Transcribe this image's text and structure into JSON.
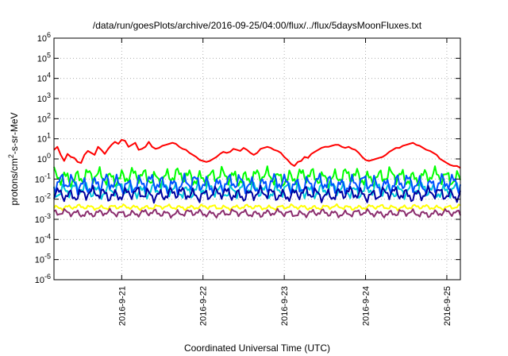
{
  "chart_data": {
    "type": "line",
    "title": "/data/run/goesPlots/archive/2016-09-25/04:00/flux/../flux/5daysMoonFluxes.txt",
    "xlabel": "Coordinated Universal Time (UTC)",
    "ylabel": {
      "pre": "protons/cm",
      "sup": "2",
      "post": "-s-sr-MeV"
    },
    "yscale": "log",
    "ylim_exp": [
      -6,
      6
    ],
    "y_ticks": [
      {
        "base": "10",
        "exp": "-6"
      },
      {
        "base": "10",
        "exp": "-5"
      },
      {
        "base": "10",
        "exp": "-4"
      },
      {
        "base": "10",
        "exp": "-3"
      },
      {
        "base": "10",
        "exp": "-2"
      },
      {
        "base": "10",
        "exp": "-1"
      },
      {
        "base": "10",
        "exp": "0"
      },
      {
        "base": "10",
        "exp": "1"
      },
      {
        "base": "10",
        "exp": "2"
      },
      {
        "base": "10",
        "exp": "3"
      },
      {
        "base": "10",
        "exp": "4"
      },
      {
        "base": "10",
        "exp": "5"
      },
      {
        "base": "10",
        "exp": "6"
      }
    ],
    "xlim": [
      "2016-09-20 04:00",
      "2016-09-25 04:00"
    ],
    "x_ticks": [
      {
        "label": "2016-9-21",
        "date": "2016-09-21"
      },
      {
        "label": "2016-9-22",
        "date": "2016-09-22"
      },
      {
        "label": "2016-9-23",
        "date": "2016-09-23"
      },
      {
        "label": "2016-9-24",
        "date": "2016-09-24"
      },
      {
        "label": "2016-9-25",
        "date": "2016-09-25"
      }
    ],
    "grid": true,
    "series": [
      {
        "color": "#ff0000",
        "x_hours": [
          0,
          1,
          2,
          3,
          4,
          5,
          6,
          7,
          8,
          9,
          10,
          11,
          12,
          13,
          14,
          15,
          16,
          17,
          18,
          19,
          20,
          21,
          22,
          23,
          24,
          25,
          26,
          27,
          28,
          29,
          30,
          31,
          32,
          33,
          34,
          35,
          36,
          37,
          38,
          39,
          40,
          41,
          42,
          43,
          44,
          45,
          46,
          47,
          48,
          49,
          50,
          51,
          52,
          53,
          54,
          55,
          56,
          57,
          58,
          59,
          60,
          61,
          62,
          63,
          64,
          65,
          66,
          67,
          68,
          69,
          70,
          71,
          72,
          73,
          74,
          75,
          76,
          77,
          78,
          79,
          80,
          81,
          82,
          83,
          84,
          85,
          86,
          87,
          88,
          89,
          90,
          91,
          92,
          93,
          94,
          95,
          96,
          97,
          98,
          99,
          100,
          101,
          102,
          103,
          104,
          105,
          106,
          107,
          108,
          109,
          110,
          111,
          112,
          113,
          114,
          115,
          116,
          117,
          118,
          119,
          120
        ],
        "log10": [
          0.45,
          0.6,
          0.2,
          -0.1,
          0.25,
          0.1,
          0.05,
          -0.15,
          -0.2,
          0.2,
          0.4,
          0.3,
          0.2,
          0.6,
          0.45,
          0.25,
          0.5,
          0.7,
          0.85,
          0.75,
          0.95,
          0.9,
          0.6,
          0.7,
          0.8,
          0.45,
          0.5,
          0.6,
          0.85,
          0.6,
          0.5,
          0.55,
          0.65,
          0.7,
          0.75,
          0.8,
          0.75,
          0.6,
          0.5,
          0.45,
          0.3,
          0.2,
          0.1,
          -0.05,
          -0.1,
          -0.15,
          -0.1,
          0.0,
          0.1,
          0.25,
          0.35,
          0.3,
          0.35,
          0.5,
          0.45,
          0.4,
          0.55,
          0.45,
          0.3,
          0.2,
          0.3,
          0.5,
          0.55,
          0.6,
          0.55,
          0.45,
          0.4,
          0.3,
          0.1,
          -0.05,
          -0.25,
          -0.35,
          -0.15,
          -0.1,
          0.1,
          0.05,
          0.25,
          0.35,
          0.45,
          0.55,
          0.6,
          0.6,
          0.65,
          0.7,
          0.7,
          0.6,
          0.55,
          0.6,
          0.5,
          0.45,
          0.3,
          0.1,
          -0.05,
          -0.1,
          -0.05,
          0.0,
          0.05,
          0.1,
          0.2,
          0.35,
          0.45,
          0.55,
          0.55,
          0.65,
          0.7,
          0.75,
          0.8,
          0.7,
          0.65,
          0.55,
          0.45,
          0.4,
          0.3,
          0.2,
          0.0,
          -0.1,
          -0.2,
          -0.3,
          -0.35,
          -0.35,
          -0.45
        ]
      },
      {
        "color": "#00ff00",
        "base_log10": -0.9,
        "amp": 0.28
      },
      {
        "color": "#00c8d8",
        "base_log10": -1.55,
        "amp": 0.25
      },
      {
        "color": "#0050ff",
        "base_log10": -1.25,
        "amp": 0.3
      },
      {
        "color": "#0000a0",
        "base_log10": -1.75,
        "amp": 0.22
      },
      {
        "color": "#ffff00",
        "base_log10": -2.4,
        "amp": 0.08
      },
      {
        "color": "#8b2d6e",
        "base_log10": -2.7,
        "amp": 0.12
      }
    ]
  }
}
